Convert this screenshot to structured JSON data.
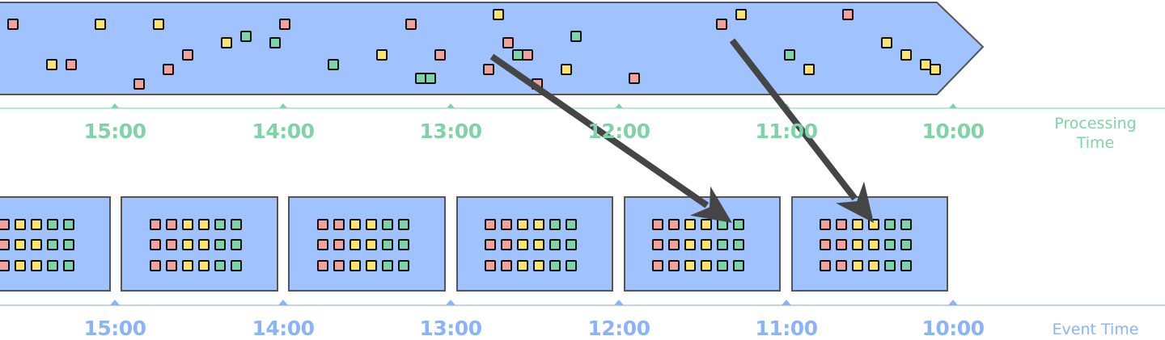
{
  "processing_axis": {
    "title": "Processing Time",
    "ticks": [
      "15:00",
      "14:00",
      "13:00",
      "12:00",
      "11:00",
      "10:00"
    ],
    "color": "#7fd3a7"
  },
  "event_axis": {
    "title": "Event Time",
    "ticks": [
      "15:00",
      "14:00",
      "13:00",
      "12:00",
      "11:00",
      "10:00"
    ],
    "color": "#8ab3fa"
  },
  "colors": {
    "stream_fill": "#a0c2fe",
    "outline": "#555555",
    "event_red": "#f2a29c",
    "event_yellow": "#fde46a",
    "event_green": "#7fd3aa",
    "arrow": "#454545"
  },
  "window_grid_pattern": [
    "red",
    "red",
    "yellow",
    "yellow",
    "green",
    "green"
  ],
  "arrows": [
    {
      "from": "processing-stream event near 13:00",
      "to": "event-time window 12:00-11:00"
    },
    {
      "from": "processing-stream event near 11:00",
      "to": "event-time window 11:00-10:00"
    }
  ]
}
